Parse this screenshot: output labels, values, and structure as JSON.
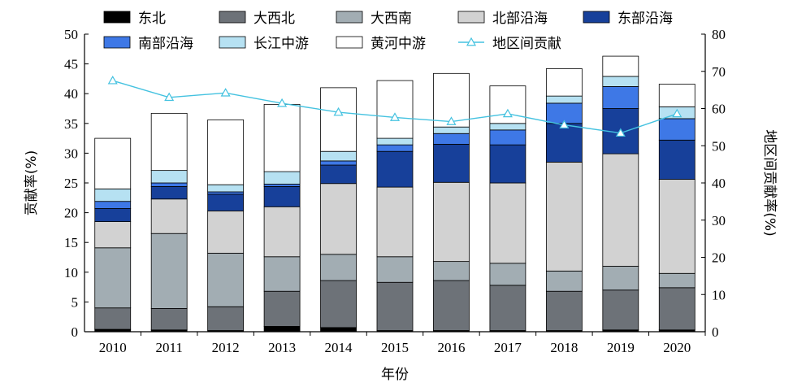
{
  "chart_data": {
    "type": "bar",
    "stacked": true,
    "title": "",
    "xlabel": "年份",
    "ylabel": "贡献率(%)",
    "y2label": "地区间贡献率(%)",
    "ylim": [
      0,
      50
    ],
    "y2lim": [
      0,
      80
    ],
    "yticks": [
      0,
      5,
      10,
      15,
      20,
      25,
      30,
      35,
      40,
      45,
      50
    ],
    "y2ticks": [
      0,
      10,
      20,
      30,
      40,
      50,
      60,
      70,
      80
    ],
    "grid": false,
    "legend_position": "top",
    "categories": [
      "2010",
      "2011",
      "2012",
      "2013",
      "2014",
      "2015",
      "2016",
      "2017",
      "2018",
      "2019",
      "2020"
    ],
    "series": [
      {
        "name": "东北",
        "color": "#000000",
        "values": [
          0.4,
          0.3,
          0.2,
          0.9,
          0.7,
          0.2,
          0.2,
          0.2,
          0.2,
          0.3,
          0.3
        ]
      },
      {
        "name": "大西北",
        "color": "#6d7278",
        "values": [
          3.6,
          3.6,
          4.0,
          5.9,
          7.9,
          8.1,
          8.4,
          7.6,
          6.6,
          6.7,
          7.1
        ]
      },
      {
        "name": "大西南",
        "color": "#a2adb3",
        "values": [
          10.1,
          12.6,
          9.0,
          5.8,
          4.4,
          4.3,
          3.2,
          3.7,
          3.4,
          4.0,
          2.4
        ]
      },
      {
        "name": "北部沿海",
        "color": "#d2d2d2",
        "values": [
          4.4,
          5.8,
          7.1,
          8.4,
          11.9,
          11.7,
          13.3,
          13.5,
          18.3,
          18.9,
          15.8
        ]
      },
      {
        "name": "东部沿海",
        "color": "#17409a",
        "values": [
          2.2,
          2.1,
          2.8,
          3.4,
          3.1,
          6.0,
          6.4,
          6.4,
          6.5,
          7.6,
          6.6
        ]
      },
      {
        "name": "南部沿海",
        "color": "#3e78e6",
        "values": [
          1.2,
          0.6,
          0.4,
          0.4,
          0.7,
          1.1,
          1.8,
          2.5,
          3.4,
          3.7,
          3.6
        ]
      },
      {
        "name": "长江中游",
        "color": "#b6e1f2",
        "values": [
          2.1,
          2.1,
          1.2,
          2.1,
          1.6,
          1.1,
          1.1,
          1.1,
          1.2,
          1.7,
          2.0
        ]
      },
      {
        "name": "黄河中游",
        "color": "#ffffff",
        "values": [
          8.5,
          9.6,
          10.9,
          11.3,
          10.7,
          9.7,
          9.0,
          6.3,
          4.6,
          3.4,
          3.8
        ]
      }
    ],
    "line_series": {
      "name": "地区间贡献",
      "color": "#44c2e0",
      "axis": "right",
      "values": [
        67.5,
        63.0,
        64.2,
        61.4,
        59.0,
        57.6,
        56.5,
        58.6,
        55.6,
        53.4,
        58.6
      ]
    }
  }
}
